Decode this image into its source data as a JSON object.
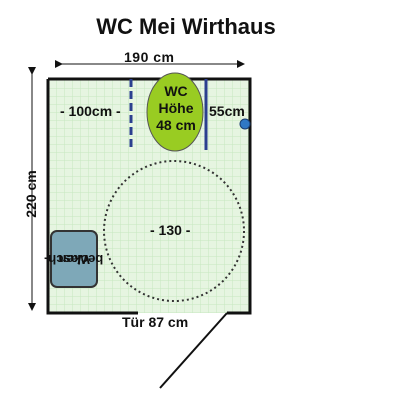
{
  "title": "WC Mei Wirthaus",
  "dimensions": {
    "width_label": "190 cm",
    "height_label": "220 cm",
    "left_gap_label": "- 100cm -",
    "right_gap_label": "55cm",
    "turning_circle_label": "- 130 -",
    "door_label": "Tür 87 cm"
  },
  "fixtures": {
    "wc_line1": "WC",
    "wc_line2": "Höhe",
    "wc_line3": "48 cm",
    "sink_line1": "Wasch-",
    "sink_line2": "becken"
  },
  "colors": {
    "floor": "#e6f5e1",
    "wall": "#111111",
    "wc": "#99cc22",
    "sink": "#7ea8b8",
    "grab_bar": "#2b3f8f",
    "dot": "#2f78c4"
  }
}
